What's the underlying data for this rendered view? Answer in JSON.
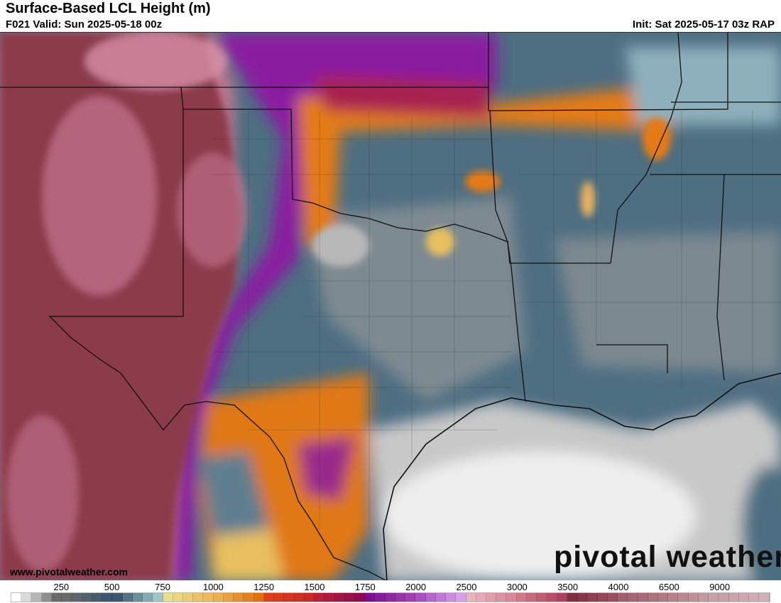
{
  "header": {
    "title": "Surface-Based LCL Height (m)",
    "valid": "F021 Valid: Sun 2025-05-18 00z",
    "init": "Init: Sat 2025-05-17 03z RAP"
  },
  "map": {
    "region": "Southern Plains / Texas / Gulf Coast",
    "colors": {
      "high_maroon": "#8c3a4c",
      "pink": "#d890a8",
      "purple": "#8a1aa0",
      "orange": "#e47a14",
      "yellow": "#e8c060",
      "blue_gray": "#4e6e82",
      "light_blue": "#8eb0bc",
      "gray": "#8a8a8a",
      "light_gray": "#e6e6e6"
    }
  },
  "footer": {
    "url": "www.pivotalweather.com",
    "logo": "pivotal weather"
  },
  "colorbar": {
    "unit": "m",
    "tick_labels": [
      "250",
      "500",
      "750",
      "1000",
      "1250",
      "1500",
      "1750",
      "2000",
      "2500",
      "3000",
      "3500",
      "4000",
      "6500",
      "9000"
    ],
    "segments": [
      {
        "from": "#ffffff",
        "to": "#6a6a6a"
      },
      {
        "from": "#6a6a6a",
        "to": "#3b566e"
      },
      {
        "from": "#3b566e",
        "to": "#9ec4cc"
      },
      {
        "from": "#e8de90",
        "to": "#ecb860"
      },
      {
        "from": "#eab050",
        "to": "#e07010"
      },
      {
        "from": "#dc4418",
        "to": "#c82828"
      },
      {
        "from": "#b82038",
        "to": "#900850"
      },
      {
        "from": "#7a1090",
        "to": "#a040b0"
      },
      {
        "from": "#a850c0",
        "to": "#d8a0e8"
      },
      {
        "from": "#e8b4bc",
        "to": "#d88898"
      },
      {
        "from": "#d07888",
        "to": "#b04060"
      },
      {
        "from": "#803040",
        "to": "#985060"
      },
      {
        "from": "#a06070",
        "to": "#b07880"
      },
      {
        "from": "#b88088",
        "to": "#c8a0a8"
      },
      {
        "from": "#c8a0a8",
        "to": "#d0b0b4"
      }
    ]
  }
}
